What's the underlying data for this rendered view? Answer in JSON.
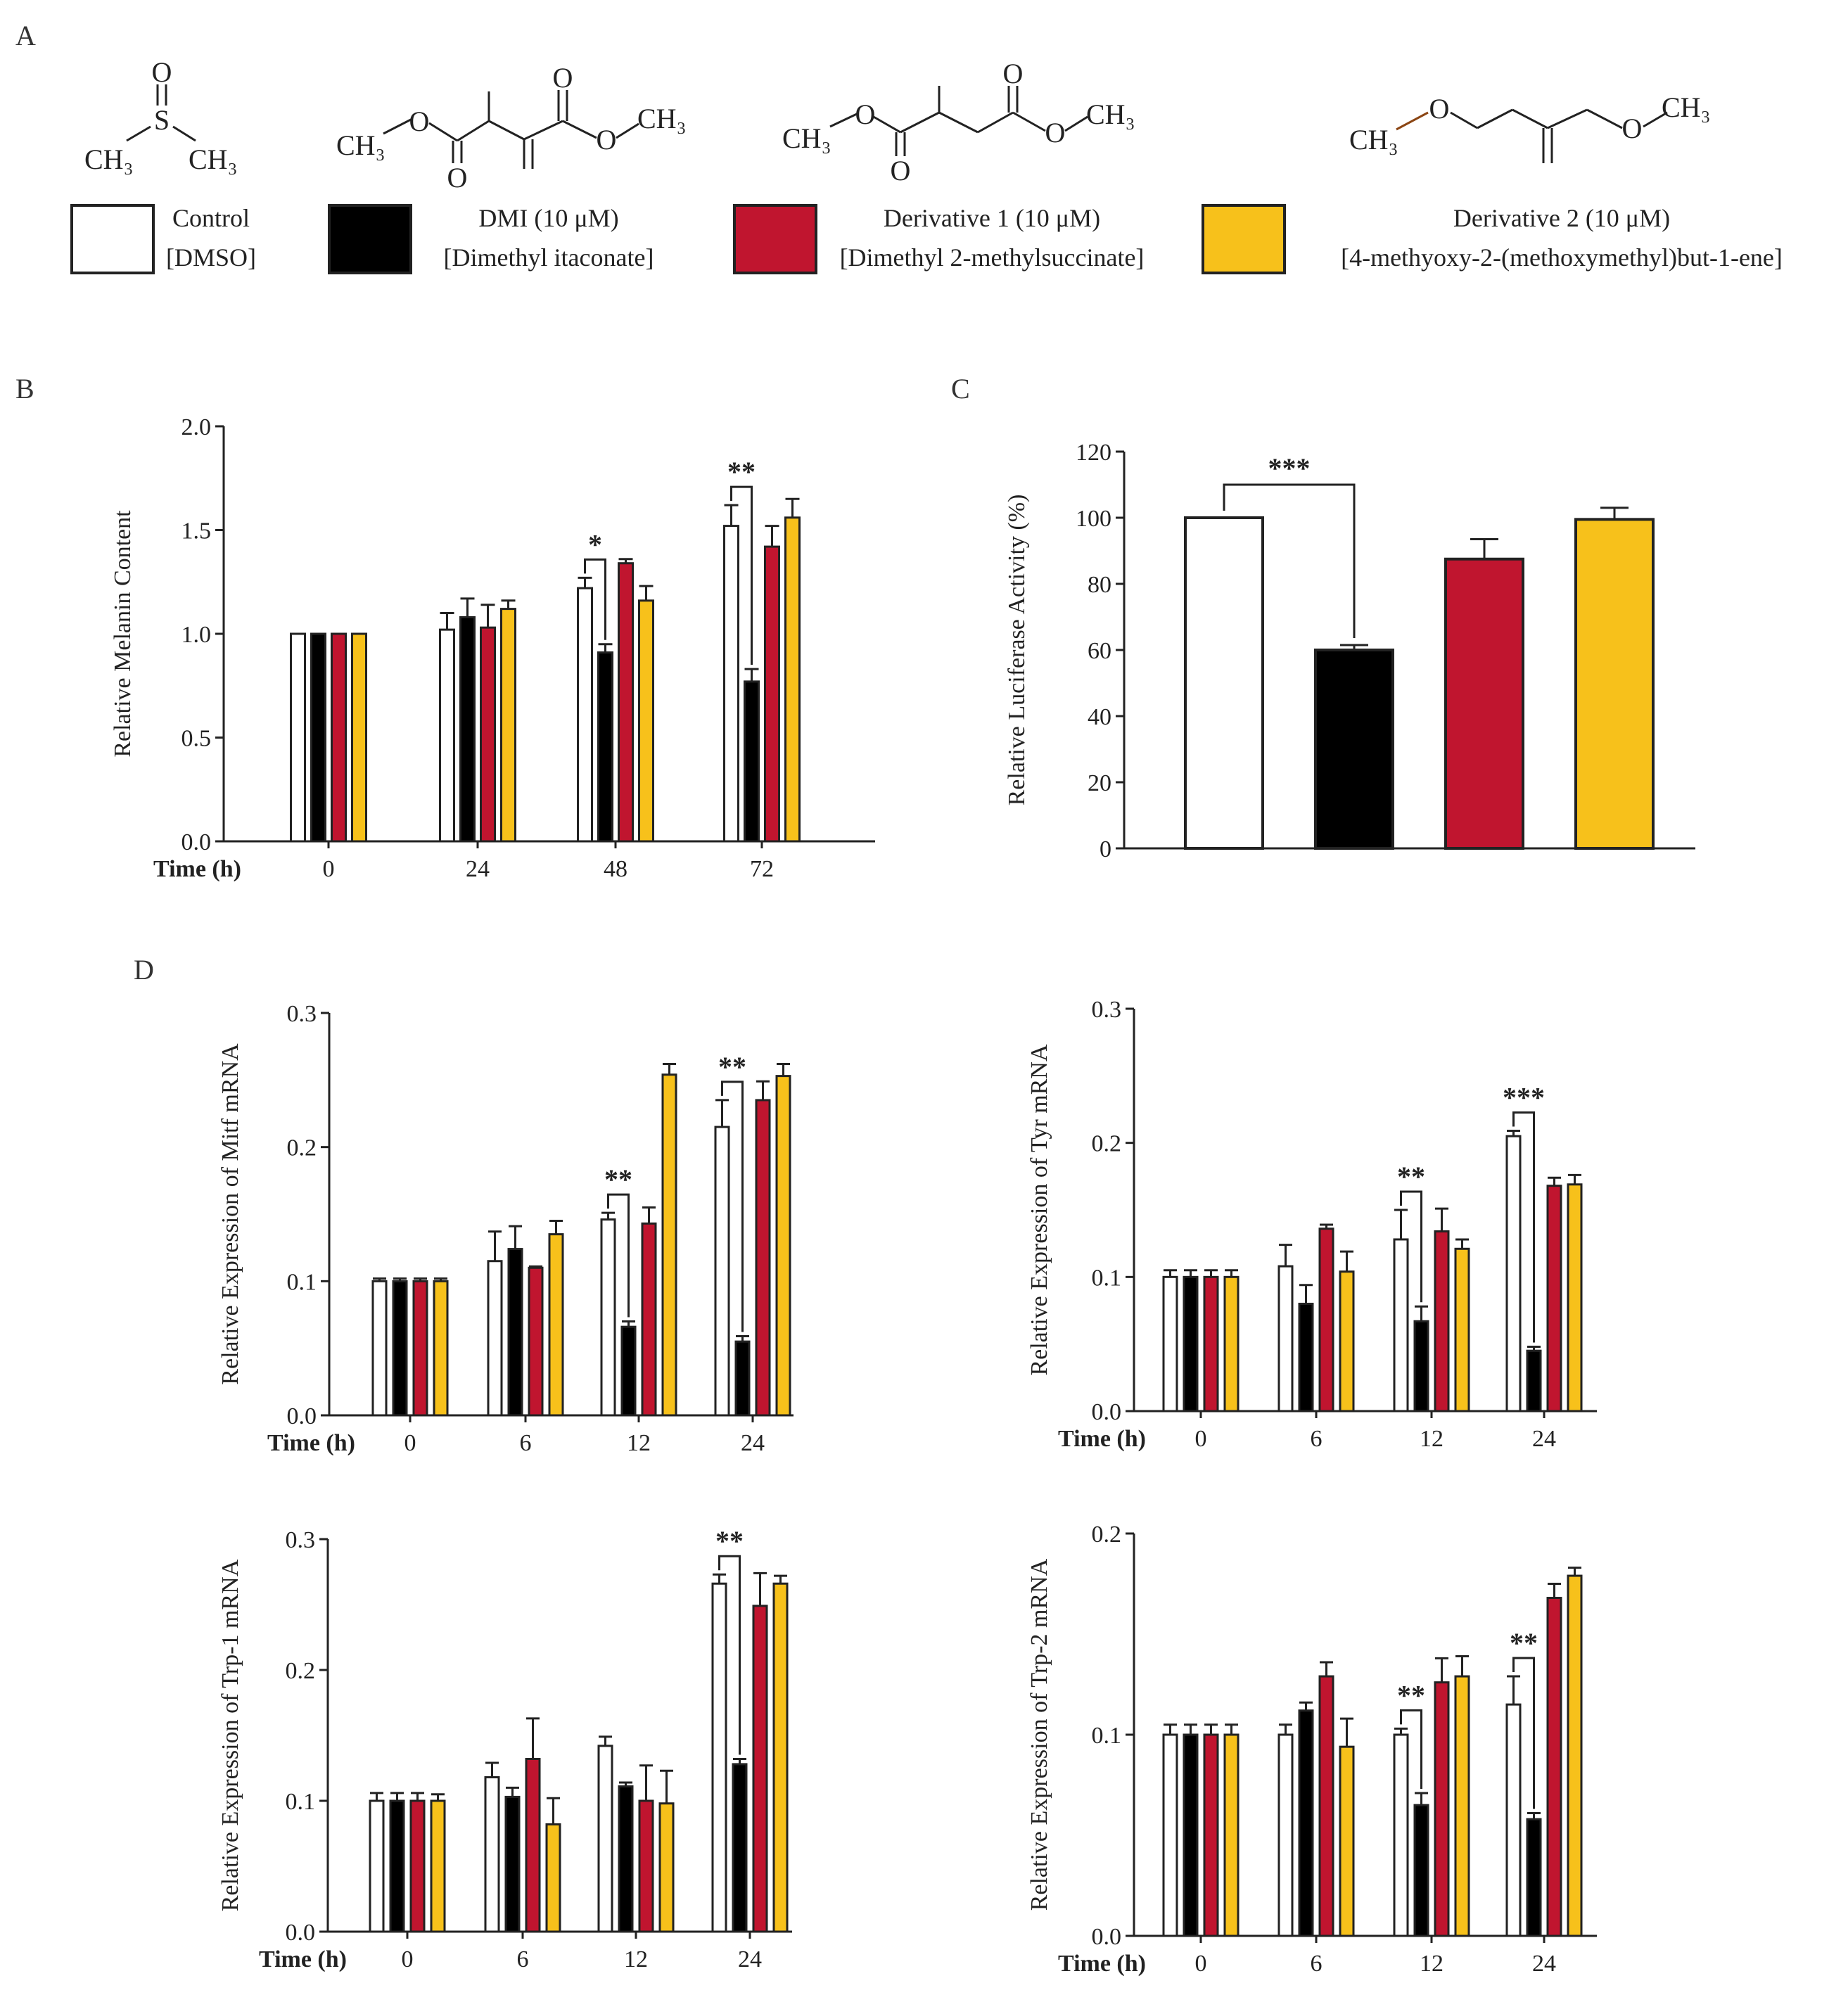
{
  "panel_labels": {
    "a": "A",
    "b": "B",
    "c": "C",
    "d": "D"
  },
  "colors": {
    "control": "#ffffff",
    "dmi": "#000000",
    "d1": "#c0152f",
    "d2": "#f7c11b",
    "axis": "#222222"
  },
  "structures": {
    "dmso": {
      "s": "S",
      "o": "O",
      "ch3_left": "CH₃",
      "ch3_right": "CH₃"
    },
    "dmi": {
      "ch3_left": "CH₃",
      "o_ether_left": "O",
      "o_carbonyl_left": "O",
      "o_carbonyl_right": "O",
      "o_ether_right": "O",
      "ch3_right": "CH₃"
    },
    "d1": {
      "ch3_left": "CH₃",
      "o_ether_left": "O",
      "o_carbonyl_left": "O",
      "o_carbonyl_right": "O",
      "o_ether_right": "O",
      "ch3_right": "CH₃"
    },
    "d2": {
      "ch3_left": "CH₃",
      "o_left": "O",
      "o_right": "O",
      "ch3_right": "CH₃"
    }
  },
  "legend": [
    {
      "name": "Control",
      "sub": "[DMSO]",
      "color": "#ffffff"
    },
    {
      "name": "DMI (10 μM)",
      "sub": "[Dimethyl itaconate]",
      "color": "#000000"
    },
    {
      "name": "Derivative 1 (10 μM)",
      "sub": "[Dimethyl 2-methylsuccinate]",
      "color": "#c0152f"
    },
    {
      "name": "Derivative 2 (10 μM)",
      "sub": "[4-methyoxy-2-(methoxymethyl)but-1-ene]",
      "color": "#f7c11b"
    }
  ],
  "chart_data": [
    {
      "id": "B",
      "type": "bar",
      "xtitle": "Time (h)",
      "ylabel": "Relative  Melanin Content",
      "categories": [
        "0",
        "24",
        "48",
        "72"
      ],
      "ylim": [
        0,
        2.0
      ],
      "yticks": [
        0.0,
        0.5,
        1.0,
        1.5,
        2.0
      ],
      "ytick_labels": [
        "0.0",
        "0.5",
        "1.0",
        "1.5",
        "2.0"
      ],
      "series": [
        {
          "name": "Control",
          "values": [
            1.0,
            1.02,
            1.22,
            1.52
          ],
          "errors": [
            0,
            0.08,
            0.05,
            0.1
          ]
        },
        {
          "name": "DMI (10 μM)",
          "values": [
            1.0,
            1.08,
            0.91,
            0.77
          ],
          "errors": [
            0,
            0.09,
            0.04,
            0.06
          ]
        },
        {
          "name": "Derivative 1 (10 μM)",
          "values": [
            1.0,
            1.03,
            1.34,
            1.42
          ],
          "errors": [
            0,
            0.11,
            0.02,
            0.1
          ]
        },
        {
          "name": "Derivative 2 (10 μM)",
          "values": [
            1.0,
            1.12,
            1.16,
            1.56
          ],
          "errors": [
            0,
            0.04,
            0.07,
            0.09
          ]
        }
      ],
      "significance": [
        {
          "category": 2,
          "label": "*"
        },
        {
          "category": 3,
          "label": "**"
        }
      ]
    },
    {
      "id": "C",
      "type": "bar",
      "xtitle": "",
      "ylabel": "Relative Luciferase Activity (%)",
      "categories": [
        "Control",
        "DMI (10 μM)",
        "Derivative 1 (10 μM)",
        "Derivative 2 (10 μM)"
      ],
      "ylim": [
        0,
        120
      ],
      "yticks": [
        0,
        20,
        40,
        60,
        80,
        100,
        120
      ],
      "ytick_labels": [
        "0",
        "20",
        "40",
        "60",
        "80",
        "100",
        "120"
      ],
      "values": [
        100,
        60,
        87.5,
        99.5
      ],
      "errors": [
        0,
        1.5,
        6,
        3.5
      ],
      "significance": [
        {
          "from": 0,
          "to": 1,
          "label": "***"
        }
      ]
    },
    {
      "id": "D-Mitf",
      "type": "bar",
      "xtitle": "Time (h)",
      "ylabel": "Relative  Expression of  Mitf mRNA",
      "categories": [
        "0",
        "6",
        "12",
        "24"
      ],
      "ylim": [
        0,
        0.3
      ],
      "yticks": [
        0.0,
        0.1,
        0.2,
        0.3
      ],
      "ytick_labels": [
        "0.0",
        "0.1",
        "0.2",
        "0.3"
      ],
      "series": [
        {
          "name": "Control",
          "values": [
            0.1,
            0.115,
            0.146,
            0.215
          ],
          "errors": [
            0.002,
            0.022,
            0.005,
            0.02
          ]
        },
        {
          "name": "DMI (10 μM)",
          "values": [
            0.1,
            0.124,
            0.066,
            0.055
          ],
          "errors": [
            0.002,
            0.017,
            0.004,
            0.004
          ]
        },
        {
          "name": "Derivative 1 (10 μM)",
          "values": [
            0.1,
            0.11,
            0.143,
            0.235
          ],
          "errors": [
            0.002,
            0.001,
            0.012,
            0.014
          ]
        },
        {
          "name": "Derivative 2 (10 μM)",
          "values": [
            0.1,
            0.135,
            0.254,
            0.253
          ],
          "errors": [
            0.002,
            0.01,
            0.008,
            0.009
          ]
        }
      ],
      "significance": [
        {
          "category": 2,
          "label": "**"
        },
        {
          "category": 3,
          "label": "**"
        }
      ]
    },
    {
      "id": "D-Tyr",
      "type": "bar",
      "xtitle": "Time (h)",
      "ylabel": "Relative  Expression of  Tyr mRNA",
      "categories": [
        "0",
        "6",
        "12",
        "24"
      ],
      "ylim": [
        0,
        0.3
      ],
      "yticks": [
        0.0,
        0.1,
        0.2,
        0.3
      ],
      "ytick_labels": [
        "0.0",
        "0.1",
        "0.2",
        "0.3"
      ],
      "series": [
        {
          "name": "Control",
          "values": [
            0.1,
            0.108,
            0.128,
            0.205
          ],
          "errors": [
            0.005,
            0.016,
            0.022,
            0.004
          ]
        },
        {
          "name": "DMI (10 μM)",
          "values": [
            0.1,
            0.08,
            0.067,
            0.045
          ],
          "errors": [
            0.005,
            0.014,
            0.011,
            0.003
          ]
        },
        {
          "name": "Derivative 1 (10 μM)",
          "values": [
            0.1,
            0.136,
            0.134,
            0.168
          ],
          "errors": [
            0.005,
            0.003,
            0.017,
            0.006
          ]
        },
        {
          "name": "Derivative 2 (10 μM)",
          "values": [
            0.1,
            0.104,
            0.121,
            0.169
          ],
          "errors": [
            0.005,
            0.015,
            0.007,
            0.007
          ]
        }
      ],
      "significance": [
        {
          "category": 2,
          "label": "**"
        },
        {
          "category": 3,
          "label": "***"
        }
      ]
    },
    {
      "id": "D-Trp1",
      "type": "bar",
      "xtitle": "Time (h)",
      "ylabel": "Relative  Expression of  Trp-1 mRNA",
      "categories": [
        "0",
        "6",
        "12",
        "24"
      ],
      "ylim": [
        0,
        0.3
      ],
      "yticks": [
        0.0,
        0.1,
        0.2,
        0.3
      ],
      "ytick_labels": [
        "0.0",
        "0.1",
        "0.2",
        "0.3"
      ],
      "series": [
        {
          "name": "Control",
          "values": [
            0.1,
            0.118,
            0.142,
            0.266
          ],
          "errors": [
            0.006,
            0.011,
            0.007,
            0.007
          ]
        },
        {
          "name": "DMI (10 μM)",
          "values": [
            0.1,
            0.103,
            0.111,
            0.128
          ],
          "errors": [
            0.006,
            0.007,
            0.003,
            0.004
          ]
        },
        {
          "name": "Derivative 1 (10 μM)",
          "values": [
            0.1,
            0.132,
            0.1,
            0.249
          ],
          "errors": [
            0.006,
            0.031,
            0.027,
            0.025
          ]
        },
        {
          "name": "Derivative 2 (10 μM)",
          "values": [
            0.1,
            0.082,
            0.098,
            0.266
          ],
          "errors": [
            0.005,
            0.02,
            0.025,
            0.006
          ]
        }
      ],
      "significance": [
        {
          "category": 3,
          "label": "**"
        }
      ]
    },
    {
      "id": "D-Trp2",
      "type": "bar",
      "xtitle": "Time (h)",
      "ylabel": "Relative  Expression of  Trp-2 mRNA",
      "categories": [
        "0",
        "6",
        "12",
        "24"
      ],
      "ylim": [
        0,
        0.2
      ],
      "yticks": [
        0.0,
        0.1,
        0.2
      ],
      "ytick_labels": [
        "0.0",
        "0.1",
        "0.2"
      ],
      "series": [
        {
          "name": "Control",
          "values": [
            0.1,
            0.1,
            0.1,
            0.115
          ],
          "errors": [
            0.005,
            0.005,
            0.003,
            0.014
          ]
        },
        {
          "name": "DMI (10 μM)",
          "values": [
            0.1,
            0.112,
            0.065,
            0.058
          ],
          "errors": [
            0.005,
            0.004,
            0.006,
            0.003
          ]
        },
        {
          "name": "Derivative 1 (10 μM)",
          "values": [
            0.1,
            0.129,
            0.126,
            0.168
          ],
          "errors": [
            0.005,
            0.007,
            0.012,
            0.007
          ]
        },
        {
          "name": "Derivative 2 (10 μM)",
          "values": [
            0.1,
            0.094,
            0.129,
            0.179
          ],
          "errors": [
            0.005,
            0.014,
            0.01,
            0.004
          ]
        }
      ],
      "significance": [
        {
          "category": 2,
          "label": "**"
        },
        {
          "category": 3,
          "label": "**"
        }
      ]
    }
  ]
}
